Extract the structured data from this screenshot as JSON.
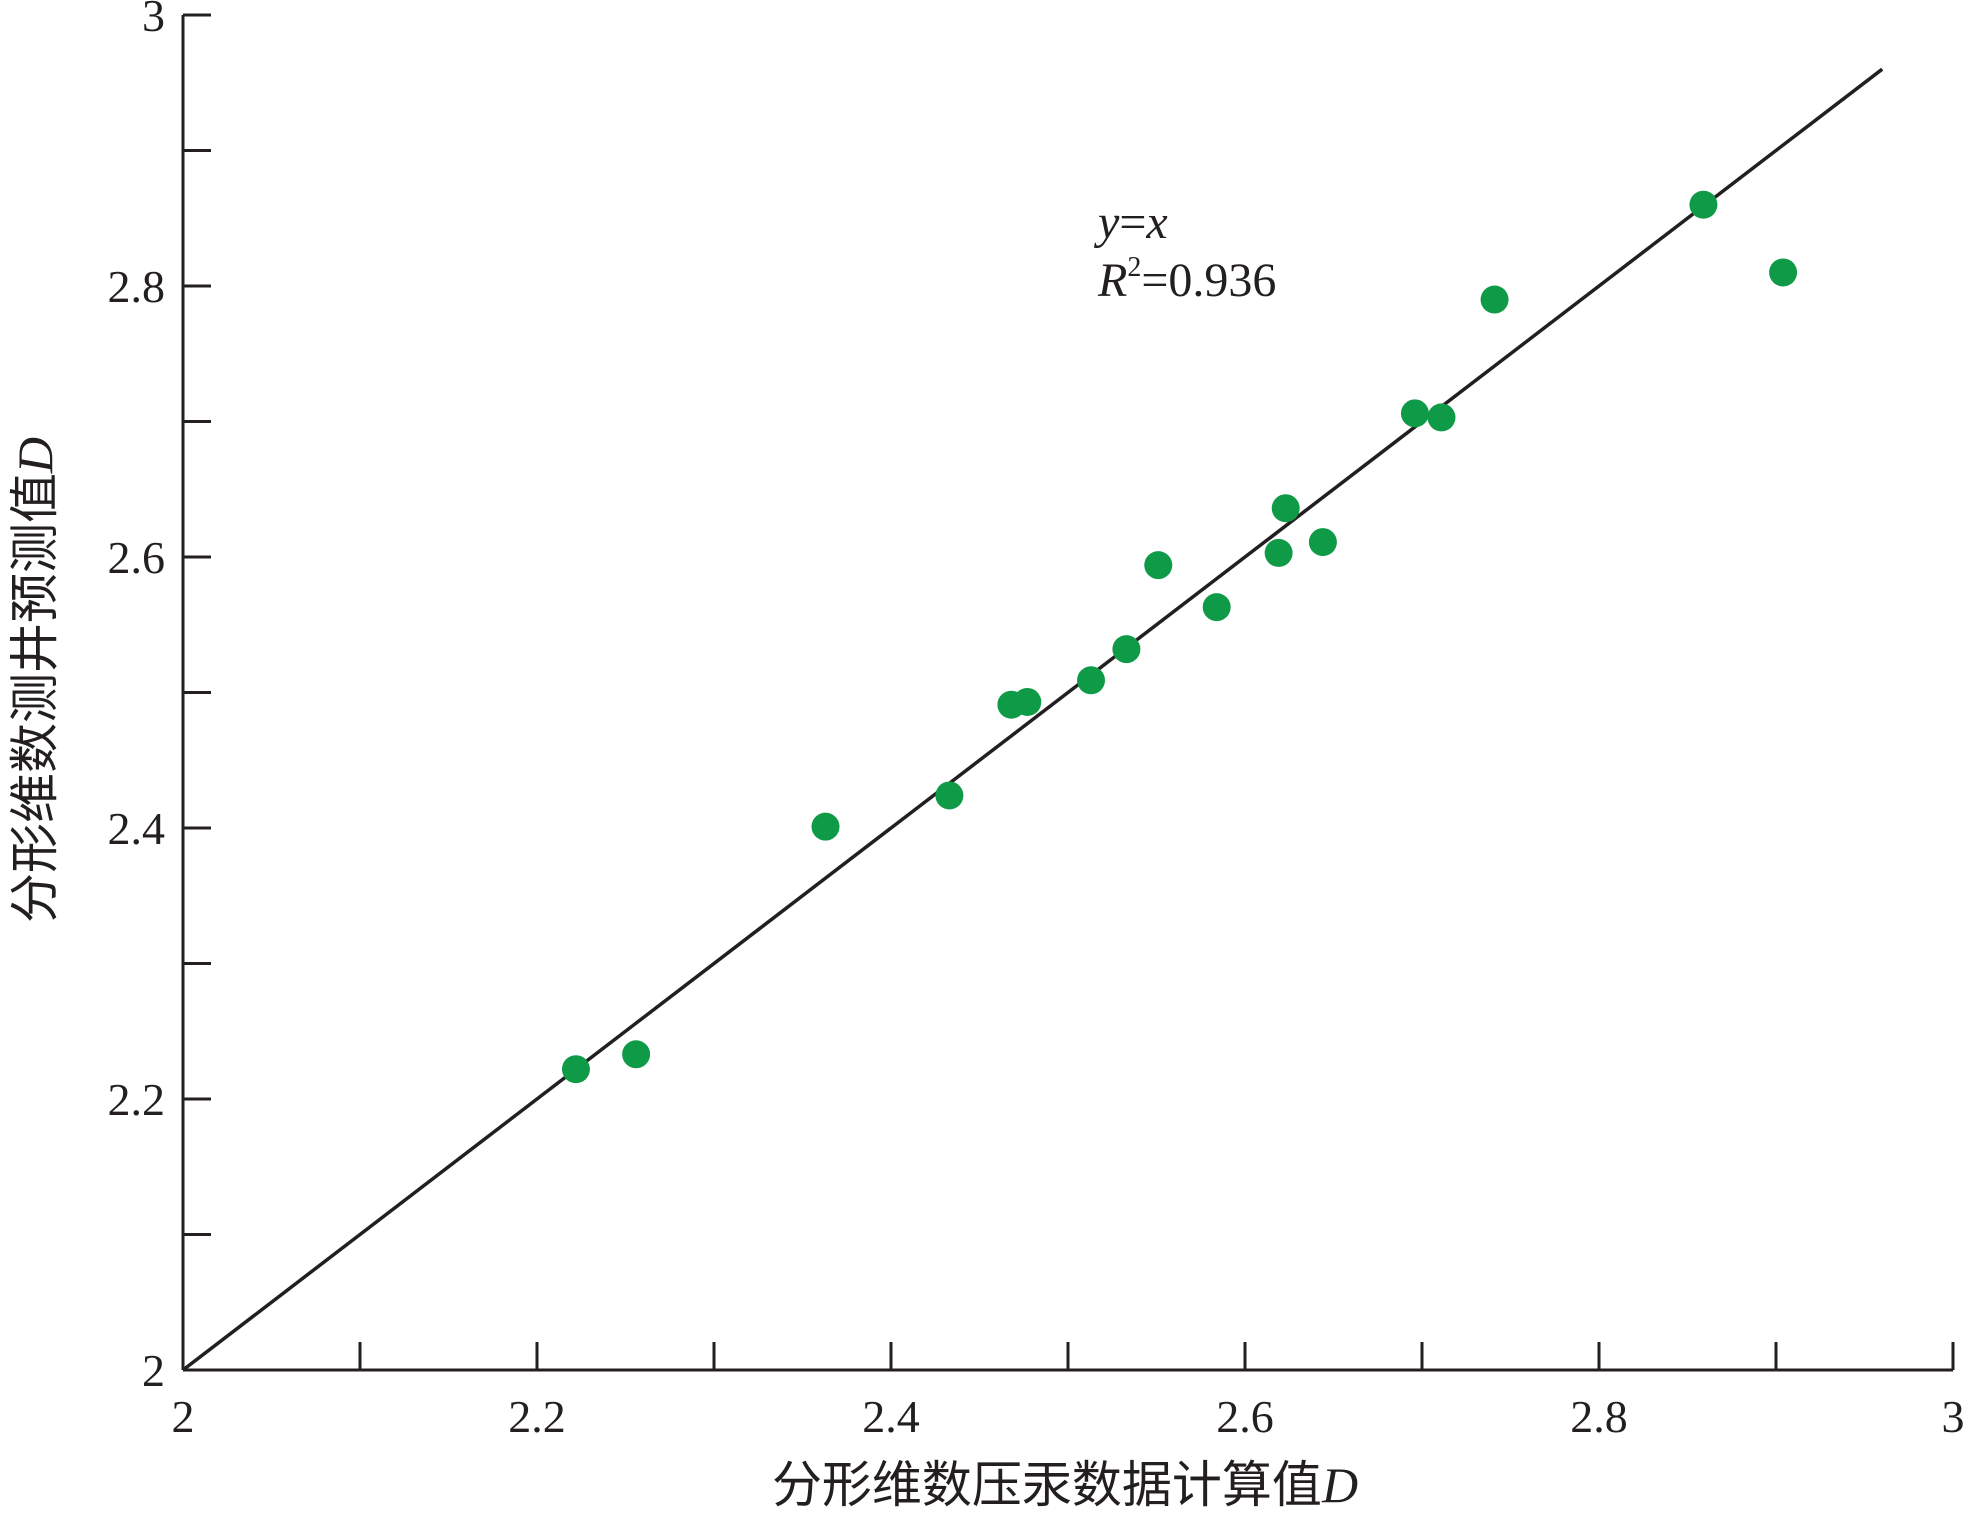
{
  "chart_data": {
    "type": "scatter",
    "xlabel_main": "分形维数压汞数据计算值",
    "xlabel_var": "D",
    "ylabel_main": "分形维数测井预测值",
    "ylabel_var": "D",
    "xlim": [
      2,
      3
    ],
    "ylim": [
      2,
      3
    ],
    "x_ticks_major": [
      2,
      2.2,
      2.4,
      2.6,
      2.8,
      3
    ],
    "x_ticks_minor": [
      2.1,
      2.3,
      2.5,
      2.7,
      2.9
    ],
    "y_ticks_major": [
      2,
      2.2,
      2.4,
      2.6,
      2.8,
      3
    ],
    "y_ticks_minor": [
      2.1,
      2.3,
      2.5,
      2.7,
      2.9
    ],
    "x_tick_labels": [
      "2",
      "2.2",
      "2.4",
      "2.6",
      "2.8",
      "3"
    ],
    "y_tick_labels": [
      "2",
      "2.2",
      "2.4",
      "2.6",
      "2.8",
      "3"
    ],
    "grid": false,
    "marker_color": "#0f9a48",
    "line_color": "#231f20",
    "fit_line": {
      "equation_y": "y",
      "equation_eq": "=",
      "equation_x": "x",
      "x_range": [
        2,
        2.96
      ]
    },
    "r2": {
      "R": "R",
      "sup": "2",
      "value": "=0.936"
    },
    "points": [
      {
        "x": 2.222,
        "y": 2.222
      },
      {
        "x": 2.256,
        "y": 2.233
      },
      {
        "x": 2.363,
        "y": 2.401
      },
      {
        "x": 2.433,
        "y": 2.424
      },
      {
        "x": 2.468,
        "y": 2.491
      },
      {
        "x": 2.477,
        "y": 2.493
      },
      {
        "x": 2.513,
        "y": 2.509
      },
      {
        "x": 2.533,
        "y": 2.532
      },
      {
        "x": 2.551,
        "y": 2.594
      },
      {
        "x": 2.584,
        "y": 2.563
      },
      {
        "x": 2.619,
        "y": 2.603
      },
      {
        "x": 2.623,
        "y": 2.636
      },
      {
        "x": 2.644,
        "y": 2.611
      },
      {
        "x": 2.696,
        "y": 2.706
      },
      {
        "x": 2.711,
        "y": 2.703
      },
      {
        "x": 2.741,
        "y": 2.79
      },
      {
        "x": 2.859,
        "y": 2.86
      },
      {
        "x": 2.904,
        "y": 2.81
      }
    ]
  }
}
